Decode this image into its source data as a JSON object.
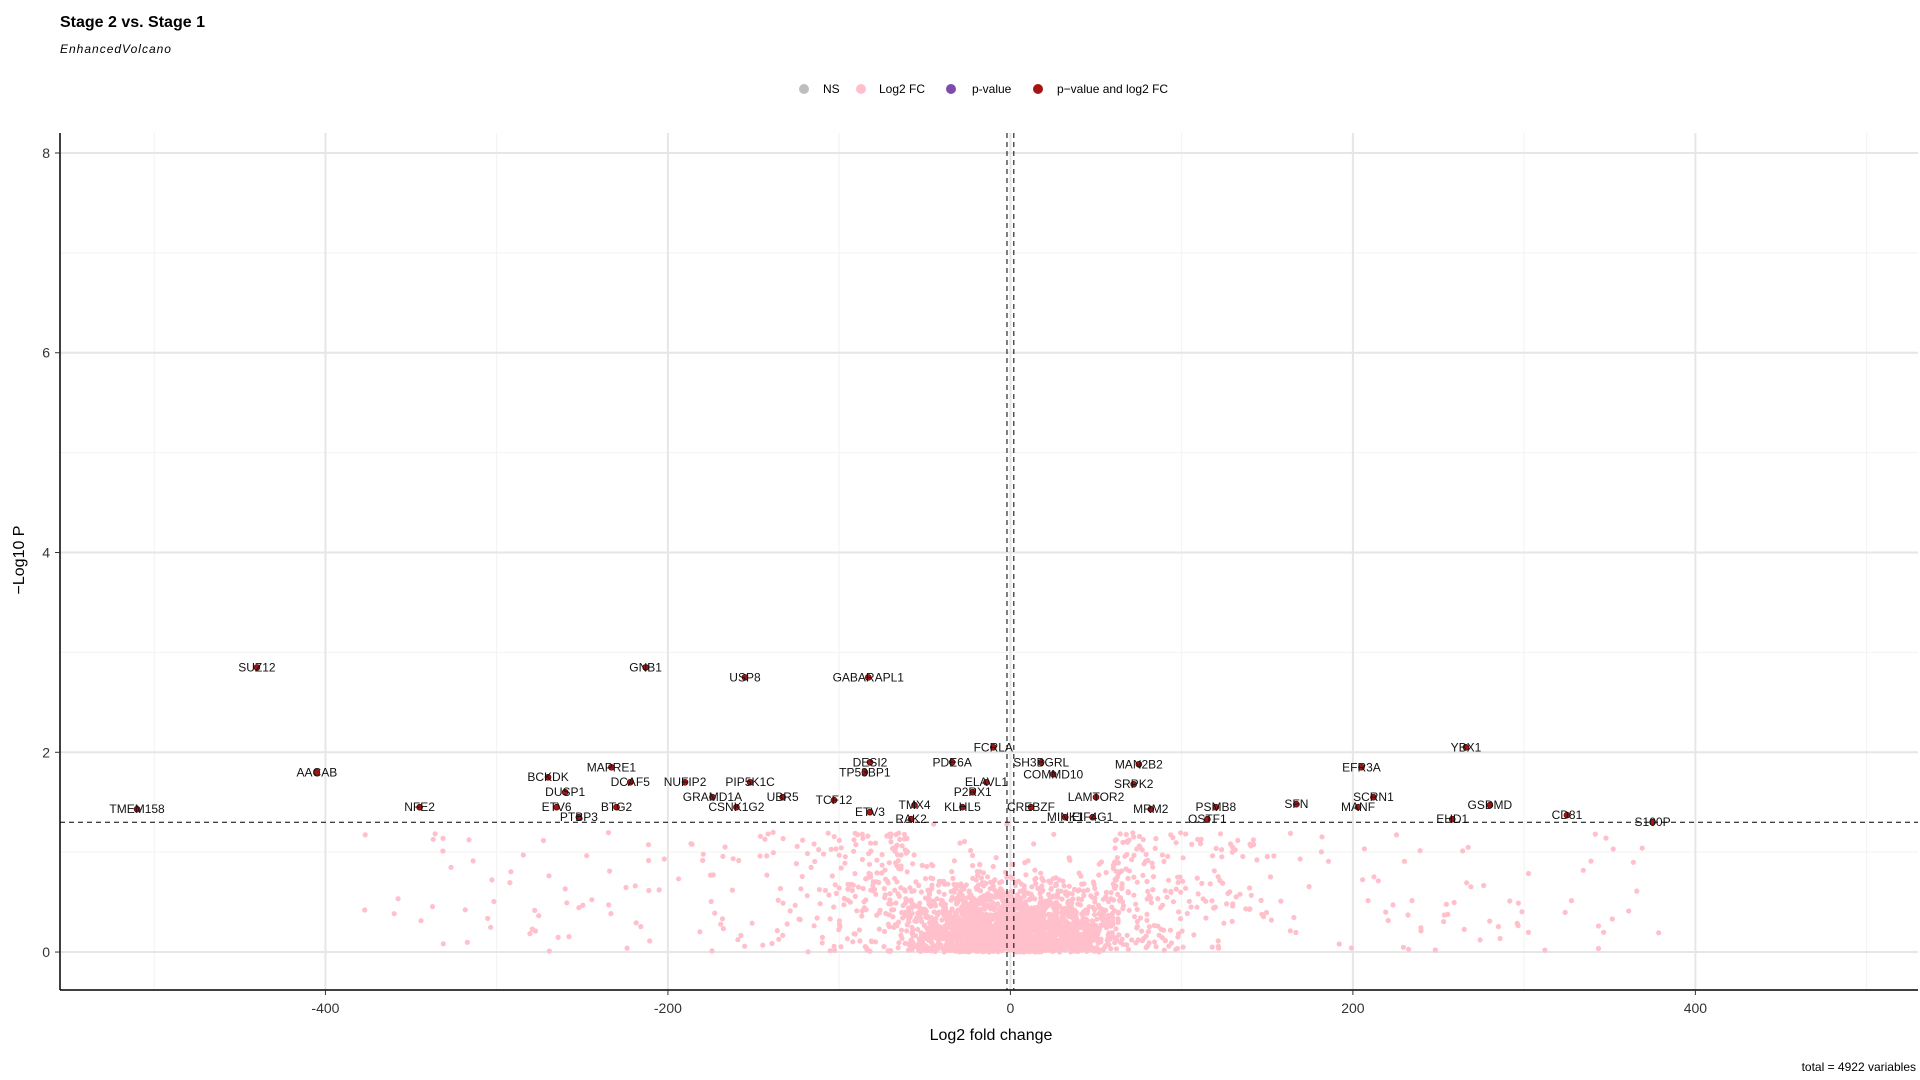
{
  "colors": {
    "ns": "#bebebe",
    "log2fc": "#ffc0cb",
    "pvalue": "#7d4bb0",
    "both": "#a31515",
    "grid": "#e6e6e6",
    "axis": "#000000"
  },
  "chart_data": {
    "type": "scatter",
    "title": "Stage 2 vs. Stage 1",
    "subtitle": "EnhancedVolcano",
    "xlabel": "Log2 fold change",
    "ylabel": "−Log10 P",
    "caption": "total = 4922 variables",
    "xlim": [
      -555,
      530
    ],
    "ylim": [
      -0.38,
      8.2
    ],
    "xticks": [
      -400,
      -200,
      0,
      200,
      400
    ],
    "xtick_labels": [
      "-400",
      "-200",
      "0",
      "200",
      "400"
    ],
    "yticks": [
      0,
      2,
      4,
      6,
      8
    ],
    "ytick_labels": [
      "0",
      "2",
      "4",
      "6",
      "8"
    ],
    "fc_cutoff": [
      -2,
      2
    ],
    "p_cutoff_log10": 1.3,
    "grid": true,
    "legend_position": "top",
    "legend": [
      {
        "key": "ns",
        "label": "NS"
      },
      {
        "key": "log2fc",
        "label": "Log2 FC"
      },
      {
        "key": "pvalue",
        "label": "p-value"
      },
      {
        "key": "both",
        "label": "p−value and log2 FC"
      }
    ],
    "background_points_note": "approx. 4800 non-significant points (Log2 FC category) clustered near x=0, y<1.3",
    "significant_points": [
      {
        "x": -440,
        "y": 2.85,
        "label": "SUZ12"
      },
      {
        "x": -405,
        "y": 1.8,
        "label": "AACAB"
      },
      {
        "x": -510,
        "y": 1.43,
        "label": "TMEM158"
      },
      {
        "x": -345,
        "y": 1.45,
        "label": "NFE2"
      },
      {
        "x": -213,
        "y": 2.85,
        "label": "GNB1"
      },
      {
        "x": -155,
        "y": 2.75,
        "label": "USP8"
      },
      {
        "x": -83,
        "y": 2.75,
        "label": "GABARAPL1"
      },
      {
        "x": -233,
        "y": 1.85,
        "label": "MAPRE1"
      },
      {
        "x": -270,
        "y": 1.75,
        "label": "BCKDK"
      },
      {
        "x": -222,
        "y": 1.7,
        "label": "DCAF5"
      },
      {
        "x": -190,
        "y": 1.7,
        "label": "NUFIP2"
      },
      {
        "x": -152,
        "y": 1.7,
        "label": "PIP5K1C"
      },
      {
        "x": -260,
        "y": 1.6,
        "label": "DUSP1"
      },
      {
        "x": -265,
        "y": 1.45,
        "label": "ETV6"
      },
      {
        "x": -230,
        "y": 1.45,
        "label": "BTG2"
      },
      {
        "x": -174,
        "y": 1.55,
        "label": "GRAMD1A"
      },
      {
        "x": -133,
        "y": 1.55,
        "label": "UBR5"
      },
      {
        "x": -160,
        "y": 1.45,
        "label": "CSNK1G2"
      },
      {
        "x": -252,
        "y": 1.35,
        "label": "PTBP3"
      },
      {
        "x": -103,
        "y": 1.52,
        "label": "TCF12"
      },
      {
        "x": -82,
        "y": 1.9,
        "label": "DESI2"
      },
      {
        "x": -85,
        "y": 1.8,
        "label": "TP53BP1"
      },
      {
        "x": -82,
        "y": 1.4,
        "label": "ETV3"
      },
      {
        "x": -56,
        "y": 1.47,
        "label": "TMX4"
      },
      {
        "x": -58,
        "y": 1.33,
        "label": "RAK2"
      },
      {
        "x": -34,
        "y": 1.9,
        "label": "PDE6A"
      },
      {
        "x": -28,
        "y": 1.45,
        "label": "KLHL5"
      },
      {
        "x": -22,
        "y": 1.6,
        "label": "P2RX1"
      },
      {
        "x": -14,
        "y": 1.7,
        "label": "ELAVL1"
      },
      {
        "x": -10,
        "y": 2.05,
        "label": "FCRLA"
      },
      {
        "x": 18,
        "y": 1.9,
        "label": "SH3BGRL"
      },
      {
        "x": 25,
        "y": 1.78,
        "label": "COMMD10"
      },
      {
        "x": 12,
        "y": 1.45,
        "label": "CREBZF"
      },
      {
        "x": 50,
        "y": 1.55,
        "label": "LAMTOR2"
      },
      {
        "x": 32,
        "y": 1.35,
        "label": "MINK1"
      },
      {
        "x": 48,
        "y": 1.35,
        "label": "EIF4G1"
      },
      {
        "x": 75,
        "y": 1.88,
        "label": "MAN2B2"
      },
      {
        "x": 72,
        "y": 1.68,
        "label": "SRPK2"
      },
      {
        "x": 82,
        "y": 1.43,
        "label": "MRM2"
      },
      {
        "x": 120,
        "y": 1.45,
        "label": "PSMB8"
      },
      {
        "x": 115,
        "y": 1.33,
        "label": "OSTF1"
      },
      {
        "x": 167,
        "y": 1.48,
        "label": "SFN"
      },
      {
        "x": 205,
        "y": 1.85,
        "label": "EFR3A"
      },
      {
        "x": 212,
        "y": 1.55,
        "label": "SCRN1"
      },
      {
        "x": 203,
        "y": 1.45,
        "label": "MANF"
      },
      {
        "x": 266,
        "y": 2.05,
        "label": "YBX1"
      },
      {
        "x": 280,
        "y": 1.47,
        "label": "GSDMD"
      },
      {
        "x": 258,
        "y": 1.33,
        "label": "EHD1"
      },
      {
        "x": 325,
        "y": 1.37,
        "label": "CD81"
      },
      {
        "x": 375,
        "y": 1.3,
        "label": "S100P"
      }
    ]
  }
}
